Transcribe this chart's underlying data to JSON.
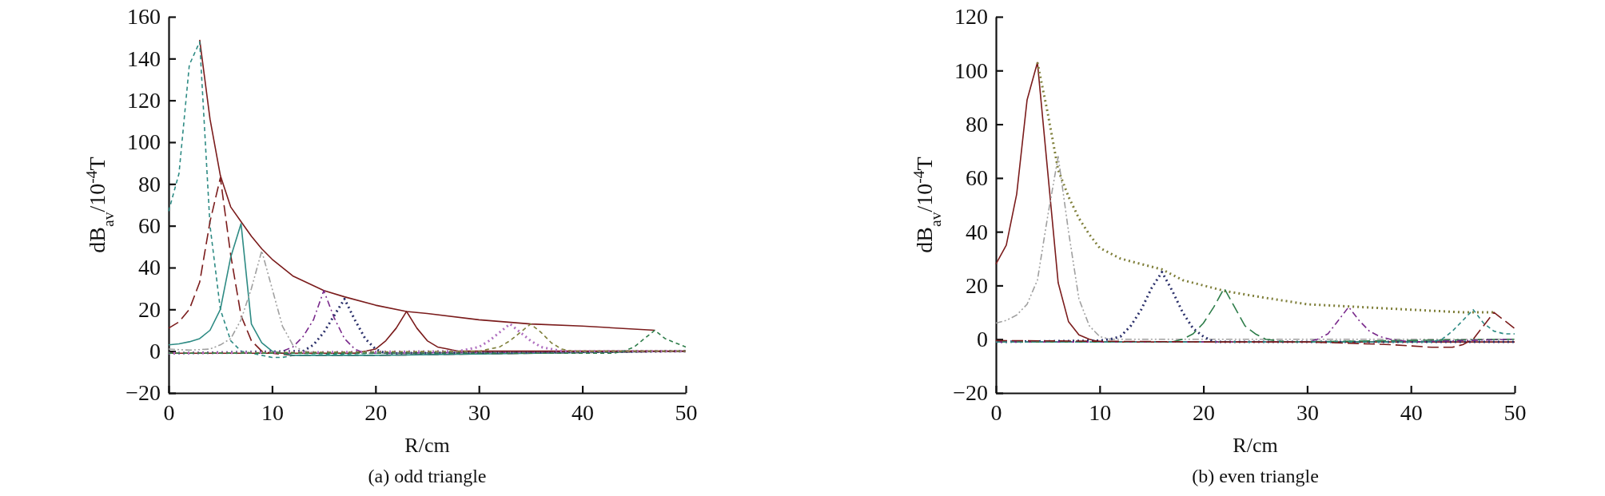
{
  "chart_data": [
    {
      "type": "line",
      "title": "(a) odd triangle",
      "xlabel": "R/cm",
      "ylabel": "dB$_{av}$/10$^{-4}$T",
      "xlim": [
        0,
        50
      ],
      "xticks": [
        0,
        10,
        20,
        30,
        40,
        50
      ],
      "ylim": [
        -20,
        160
      ],
      "yticks": [
        -20,
        0,
        20,
        40,
        60,
        80,
        100,
        120,
        140,
        160
      ],
      "grid": false,
      "marker": "none",
      "series": [
        {
          "color": "#7b1c1c",
          "line_style": "solid",
          "x": [
            3,
            4,
            5,
            6,
            7,
            8,
            9,
            10,
            12,
            15,
            17,
            20,
            23,
            25,
            30,
            35,
            40,
            47
          ],
          "values": [
            149,
            111,
            84,
            69,
            62,
            55,
            49,
            44,
            36,
            29,
            26,
            22,
            19,
            18,
            15,
            13,
            12,
            10
          ]
        },
        {
          "color": "#2e8b84",
          "line_style": "dashed",
          "x": [
            0,
            1,
            2,
            3,
            4,
            5,
            6,
            7,
            8,
            9,
            10,
            11,
            12,
            20,
            50
          ],
          "values": [
            67,
            85,
            137,
            148,
            60,
            20,
            5,
            0,
            -1,
            -2,
            -3,
            -3,
            -2,
            -1,
            0
          ]
        },
        {
          "color": "#7b1c1c",
          "line_style": "longdash",
          "x": [
            0,
            1,
            2,
            3,
            4,
            5,
            6,
            7,
            8,
            9,
            10,
            12,
            14,
            20,
            50
          ],
          "values": [
            11,
            14,
            20,
            33,
            62,
            83,
            46,
            17,
            5,
            0,
            -1,
            -2,
            -2,
            -2,
            0
          ]
        },
        {
          "color": "#2e8b84",
          "line_style": "solid",
          "x": [
            0,
            1,
            2,
            3,
            4,
            5,
            6,
            7,
            8,
            9,
            10,
            11,
            12,
            20,
            50
          ],
          "values": [
            3,
            3.5,
            4.5,
            6,
            10,
            20,
            45,
            61,
            13,
            4,
            0,
            -1,
            -2,
            -2,
            0
          ]
        },
        {
          "color": "#a0a0a0",
          "line_style": "dashdotdot",
          "x": [
            0,
            2,
            4,
            5,
            6,
            7,
            8,
            9,
            10,
            11,
            12,
            13,
            15,
            50
          ],
          "values": [
            1,
            0.5,
            1,
            3,
            6,
            15,
            30,
            48,
            30,
            12,
            3,
            0,
            -1,
            0
          ]
        },
        {
          "color": "#7a2a8c",
          "line_style": "dashdot",
          "x": [
            0,
            10,
            11,
            12,
            13,
            14,
            15,
            16,
            17,
            18,
            19,
            50
          ],
          "values": [
            -1,
            -1,
            0,
            2,
            7,
            15,
            29,
            16,
            6,
            1,
            -1,
            0
          ]
        },
        {
          "color": "#2a2f6a",
          "line_style": "dotted",
          "x": [
            0,
            13,
            14,
            15,
            16,
            17,
            18,
            19,
            20,
            21,
            50
          ],
          "values": [
            -1,
            0,
            3,
            9,
            17,
            25,
            15,
            6,
            1,
            -1,
            0
          ]
        },
        {
          "color": "#7b1c1c",
          "line_style": "solid",
          "x": [
            0,
            18,
            19,
            20,
            21,
            22,
            23,
            24,
            25,
            26,
            27,
            28,
            50
          ],
          "values": [
            -1,
            -1,
            0,
            1,
            5,
            11,
            19,
            11,
            5,
            2,
            1,
            0,
            0
          ]
        },
        {
          "color": "#b070c0",
          "line_style": "dotted",
          "x": [
            0,
            28,
            29,
            30,
            31,
            32,
            33,
            34,
            35,
            36,
            37,
            38,
            50
          ],
          "values": [
            -1,
            0,
            1,
            2,
            5,
            9,
            13,
            9,
            5,
            2,
            1,
            0,
            0
          ]
        },
        {
          "color": "#7f7f3a",
          "line_style": "dashed",
          "x": [
            0,
            30,
            31,
            32,
            33,
            34,
            35,
            36,
            37,
            38,
            39,
            50
          ],
          "values": [
            -1,
            0,
            1,
            2,
            5,
            9,
            13,
            9,
            4,
            1,
            0,
            0
          ]
        },
        {
          "color": "#2e7d4a",
          "line_style": "dashed",
          "x": [
            0,
            43,
            44,
            45,
            46,
            47,
            48,
            49,
            50
          ],
          "values": [
            -1,
            -1,
            0,
            2,
            6,
            10,
            6,
            4,
            2
          ]
        }
      ]
    },
    {
      "type": "line",
      "title": "(b) even triangle",
      "xlabel": "R/cm",
      "ylabel": "dB$_{av}$/10$^{-4}$T",
      "xlim": [
        0,
        50
      ],
      "xticks": [
        0,
        10,
        20,
        30,
        40,
        50
      ],
      "ylim": [
        -20,
        120
      ],
      "yticks": [
        -20,
        0,
        20,
        40,
        60,
        80,
        100,
        120
      ],
      "grid": false,
      "marker": "none",
      "series": [
        {
          "color": "#7b1c1c",
          "line_style": "solid",
          "x": [
            0,
            1,
            2,
            3,
            4,
            5,
            6,
            7,
            8,
            9,
            10,
            50
          ],
          "values": [
            28,
            35,
            54,
            89,
            103,
            62,
            21,
            6.5,
            1.6,
            0,
            -1,
            -1
          ]
        },
        {
          "color": "#7f7f3a",
          "line_style": "dotted",
          "x": [
            4,
            5,
            6,
            7,
            8,
            9,
            10,
            12,
            14,
            16,
            18,
            20,
            22,
            25,
            30,
            35,
            40,
            45,
            48
          ],
          "values": [
            103,
            84,
            63,
            53,
            45,
            39,
            34,
            30,
            28,
            26,
            22,
            20,
            18,
            16,
            13,
            12,
            11,
            10,
            10
          ]
        },
        {
          "color": "#a0a0a0",
          "line_style": "dashdotdot",
          "x": [
            0,
            1,
            2,
            3,
            4,
            5,
            6,
            7,
            8,
            9,
            10,
            11,
            50
          ],
          "values": [
            6,
            7,
            9,
            13,
            22,
            46,
            68,
            40,
            15,
            5,
            1,
            0,
            0
          ]
        },
        {
          "color": "#2a2f6a",
          "line_style": "dotted",
          "x": [
            0,
            10,
            11,
            12,
            13,
            14,
            15,
            16,
            17,
            18,
            19,
            20,
            21,
            50
          ],
          "values": [
            -1,
            -0.5,
            0,
            1,
            5,
            11,
            19,
            25,
            18,
            10,
            4,
            1,
            -1,
            -1
          ]
        },
        {
          "color": "#2e7d4a",
          "line_style": "longdash",
          "x": [
            0,
            17,
            18,
            19,
            20,
            21,
            22,
            23,
            24,
            25,
            26,
            28,
            50
          ],
          "values": [
            -1,
            -1,
            0,
            2,
            6,
            12,
            19,
            12,
            5,
            2,
            0,
            -1,
            0
          ]
        },
        {
          "color": "#7a2a8c",
          "line_style": "dashdot",
          "x": [
            0,
            30,
            31,
            32,
            33,
            34,
            35,
            36,
            37,
            38,
            40,
            50
          ],
          "values": [
            -1,
            -1,
            0,
            2,
            7,
            12,
            7,
            3,
            1,
            0,
            -1,
            0
          ]
        },
        {
          "color": "#2e8b84",
          "line_style": "dashed",
          "x": [
            0,
            42,
            43,
            44,
            45,
            46,
            47,
            48,
            49,
            50
          ],
          "values": [
            -1,
            -1,
            0,
            3,
            7,
            11,
            6,
            3,
            2,
            2
          ]
        },
        {
          "color": "#7b1c1c",
          "line_style": "longdash",
          "x": [
            0,
            20,
            30,
            38,
            42,
            44,
            45,
            46,
            47,
            48,
            49,
            50
          ],
          "values": [
            -0.5,
            -1,
            -1,
            -2,
            -3,
            -3,
            -2,
            0,
            5,
            10,
            7,
            4
          ]
        }
      ]
    }
  ]
}
